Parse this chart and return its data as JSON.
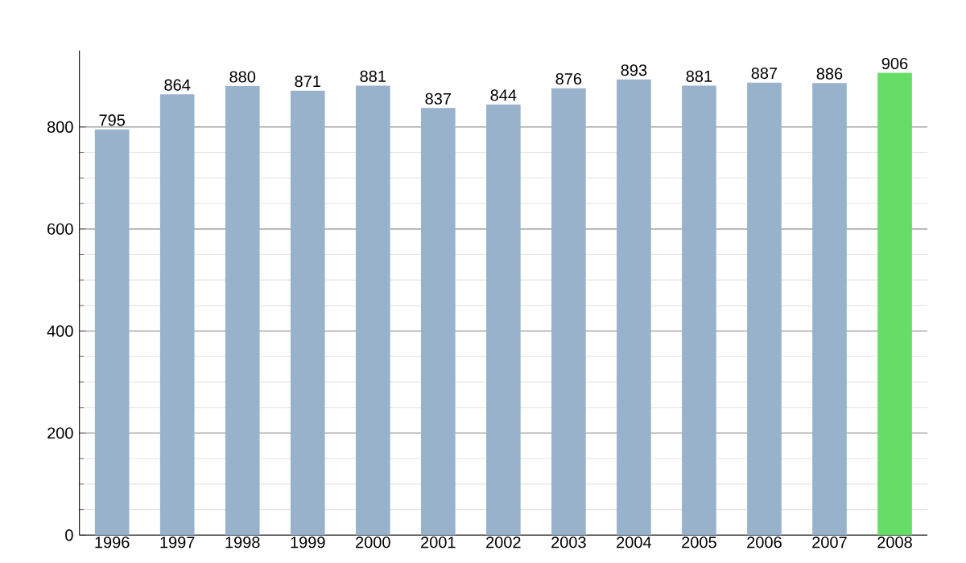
{
  "chart_data": {
    "type": "bar",
    "categories": [
      "1996",
      "1997",
      "1998",
      "1999",
      "2000",
      "2001",
      "2002",
      "2003",
      "2004",
      "2005",
      "2006",
      "2007",
      "2008"
    ],
    "values": [
      795,
      864,
      880,
      871,
      881,
      837,
      844,
      876,
      893,
      881,
      887,
      886,
      906
    ],
    "colors": [
      "#98b2cc",
      "#98b2cc",
      "#98b2cc",
      "#98b2cc",
      "#98b2cc",
      "#98b2cc",
      "#98b2cc",
      "#98b2cc",
      "#98b2cc",
      "#98b2cc",
      "#98b2cc",
      "#98b2cc",
      "#66dd66"
    ],
    "ylim": [
      0,
      950
    ],
    "yticks": [
      0,
      200,
      400,
      600,
      800
    ],
    "grid": "y",
    "data_labels": true
  }
}
